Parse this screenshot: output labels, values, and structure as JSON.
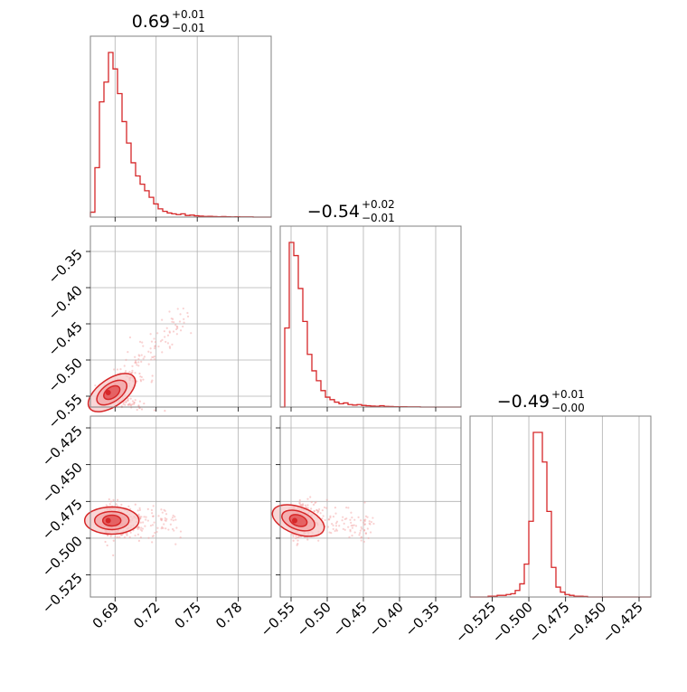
{
  "colors": {
    "main": "#d62728",
    "points": "#f4a6a6",
    "fill_dark": "#e04a4b",
    "fill_light": "#f7c9c9"
  },
  "titles": [
    {
      "value": "0.69",
      "plus": "+0.01",
      "minus": "−0.01"
    },
    {
      "value": "−0.54",
      "plus": "+0.02",
      "minus": "−0.01"
    },
    {
      "value": "−0.49",
      "plus": "+0.01",
      "minus": "−0.00"
    }
  ],
  "chart_data": {
    "type": "corner",
    "parameters": 3,
    "ranges": [
      [
        0.672,
        0.804
      ],
      [
        -0.565,
        -0.315
      ],
      [
        -0.54,
        -0.417
      ]
    ],
    "ticks": [
      {
        "values": [
          0.69,
          0.72,
          0.75,
          0.78
        ],
        "labels": [
          "0.69",
          "0.72",
          "0.75",
          "0.78"
        ]
      },
      {
        "values": [
          -0.55,
          -0.5,
          -0.45,
          -0.4,
          -0.35
        ],
        "labels": [
          "−0.55",
          "−0.50",
          "−0.45",
          "−0.40",
          "−0.35"
        ]
      },
      {
        "values": [
          -0.525,
          -0.5,
          -0.475,
          -0.45,
          -0.425
        ],
        "labels": [
          "−0.525",
          "−0.500",
          "−0.475",
          "−0.450",
          "−0.425"
        ]
      }
    ],
    "histograms": [
      {
        "param": 0,
        "heights": [
          0.03,
          0.3,
          0.7,
          0.82,
          1.0,
          0.9,
          0.75,
          0.58,
          0.45,
          0.33,
          0.25,
          0.2,
          0.16,
          0.12,
          0.08,
          0.05,
          0.035,
          0.025,
          0.02,
          0.015,
          0.02,
          0.01,
          0.012,
          0.008,
          0.006,
          0.004,
          0.005,
          0.003,
          0.002,
          0.003,
          0.002,
          0.001,
          0.002,
          0.001,
          0.001,
          0.001,
          0.0,
          0.0,
          0.0,
          0.0
        ]
      },
      {
        "param": 1,
        "heights": [
          0.0,
          0.48,
          1.0,
          0.92,
          0.72,
          0.52,
          0.32,
          0.22,
          0.16,
          0.1,
          0.06,
          0.045,
          0.03,
          0.02,
          0.025,
          0.015,
          0.012,
          0.015,
          0.01,
          0.008,
          0.006,
          0.005,
          0.008,
          0.004,
          0.003,
          0.002,
          0.002,
          0.002,
          0.001,
          0.001,
          0.001,
          0.0,
          0.0,
          0.0,
          0.0,
          0.0,
          0.0,
          0.0,
          0.0,
          0.0
        ]
      },
      {
        "param": 2,
        "heights": [
          0.0,
          0.0,
          0.0,
          0.0,
          0.005,
          0.005,
          0.01,
          0.01,
          0.015,
          0.02,
          0.04,
          0.08,
          0.2,
          0.46,
          1.0,
          1.0,
          0.82,
          0.52,
          0.18,
          0.06,
          0.03,
          0.015,
          0.01,
          0.005,
          0.005,
          0.003,
          0.0,
          0.0,
          0.0,
          0.0,
          0.0,
          0.0,
          0.0,
          0.0,
          0.0,
          0.0,
          0.0,
          0.0,
          0.0,
          0.0
        ]
      }
    ],
    "pairs": [
      {
        "x_param": 0,
        "y_param": 1,
        "center": [
          0.685,
          -0.545
        ],
        "spread": [
          0.008,
          0.01
        ],
        "correlation": 0.88,
        "tail": [
          0.74,
          -0.44
        ]
      },
      {
        "x_param": 0,
        "y_param": 2,
        "center": [
          0.685,
          -0.488
        ],
        "spread": [
          0.007,
          0.006
        ],
        "correlation": -0.1,
        "tail": [
          0.73,
          -0.49
        ]
      },
      {
        "x_param": 1,
        "y_param": 2,
        "center": [
          -0.545,
          -0.488
        ],
        "spread": [
          0.01,
          0.006
        ],
        "correlation": -0.35,
        "tail": [
          -0.44,
          -0.492
        ]
      }
    ]
  }
}
